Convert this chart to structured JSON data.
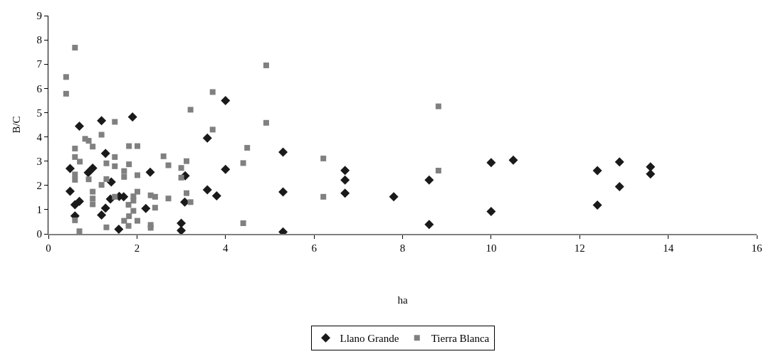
{
  "chart_data": {
    "type": "scatter",
    "xlabel": "ha",
    "ylabel": "B/C",
    "xlim": [
      0,
      16
    ],
    "ylim": [
      0,
      9
    ],
    "xticks": [
      0,
      2,
      4,
      6,
      8,
      10,
      12,
      14,
      16
    ],
    "yticks": [
      0,
      1,
      2,
      3,
      4,
      5,
      6,
      7,
      8,
      9
    ],
    "grid": false,
    "legend": "bottom",
    "series": [
      {
        "name": "Llano Grande",
        "color": "#1a1a1a",
        "marker": "diamond",
        "x": [
          0.49,
          0.49,
          0.6,
          0.6,
          0.7,
          0.7,
          0.9,
          1.0,
          1.2,
          1.2,
          1.29,
          1.29,
          1.4,
          1.42,
          1.59,
          1.6,
          1.7,
          1.9,
          2.3,
          2.2,
          3.09,
          3.08,
          3.0,
          3.0,
          3.59,
          3.59,
          3.8,
          4.0,
          4.0,
          5.3,
          5.3,
          5.3,
          6.7,
          6.7,
          6.7,
          7.8,
          8.6,
          8.6,
          10.0,
          10.0,
          10.5,
          12.4,
          12.4,
          12.9,
          12.9,
          13.6,
          13.6
        ],
        "values": [
          2.7,
          1.76,
          1.2,
          0.74,
          4.44,
          1.34,
          2.53,
          2.71,
          4.67,
          0.78,
          3.32,
          1.06,
          1.44,
          2.14,
          0.19,
          1.55,
          1.53,
          4.82,
          2.54,
          1.05,
          2.4,
          1.31,
          0.44,
          0.14,
          3.95,
          1.82,
          1.57,
          5.5,
          2.66,
          3.37,
          1.73,
          0.08,
          2.62,
          2.22,
          1.68,
          1.53,
          2.22,
          0.39,
          2.94,
          0.92,
          3.04,
          2.61,
          1.19,
          2.97,
          1.95,
          2.76,
          2.47
        ]
      },
      {
        "name": "Tierra Blanca",
        "color": "#808080",
        "marker": "square",
        "x": [
          0.6,
          0.4,
          0.4,
          0.6,
          0.6,
          0.71,
          0.6,
          0.6,
          0.6,
          0.7,
          0.83,
          0.91,
          1.0,
          0.91,
          1.0,
          1.0,
          1.0,
          1.2,
          1.2,
          1.5,
          1.31,
          1.31,
          1.31,
          1.5,
          1.5,
          1.5,
          1.71,
          1.82,
          1.82,
          2.01,
          1.71,
          1.92,
          1.92,
          1.81,
          1.92,
          1.82,
          1.71,
          1.81,
          2.01,
          2.01,
          2.01,
          2.31,
          2.41,
          2.41,
          2.31,
          2.31,
          2.6,
          2.71,
          2.71,
          3.0,
          3.0,
          3.12,
          3.12,
          3.21,
          3.21,
          3.71,
          3.71,
          4.4,
          4.4,
          4.49,
          4.92,
          4.92,
          6.21,
          6.21,
          8.81,
          8.81
        ],
        "values": [
          7.68,
          6.47,
          5.78,
          3.52,
          3.17,
          2.98,
          2.45,
          2.23,
          0.56,
          0.11,
          3.92,
          3.84,
          3.6,
          2.25,
          1.74,
          1.46,
          1.22,
          4.09,
          2.02,
          4.62,
          2.91,
          2.26,
          0.27,
          3.17,
          2.79,
          1.53,
          2.59,
          2.87,
          3.62,
          3.62,
          2.35,
          1.55,
          1.37,
          1.2,
          0.95,
          0.73,
          0.54,
          0.33,
          2.42,
          1.74,
          0.54,
          1.59,
          1.53,
          1.08,
          0.37,
          0.25,
          3.2,
          2.83,
          1.46,
          2.72,
          2.32,
          3.0,
          1.68,
          1.31,
          5.12,
          5.85,
          4.3,
          2.92,
          0.44,
          3.55,
          4.58,
          6.95,
          3.11,
          1.53,
          5.26,
          2.61
        ]
      }
    ]
  }
}
